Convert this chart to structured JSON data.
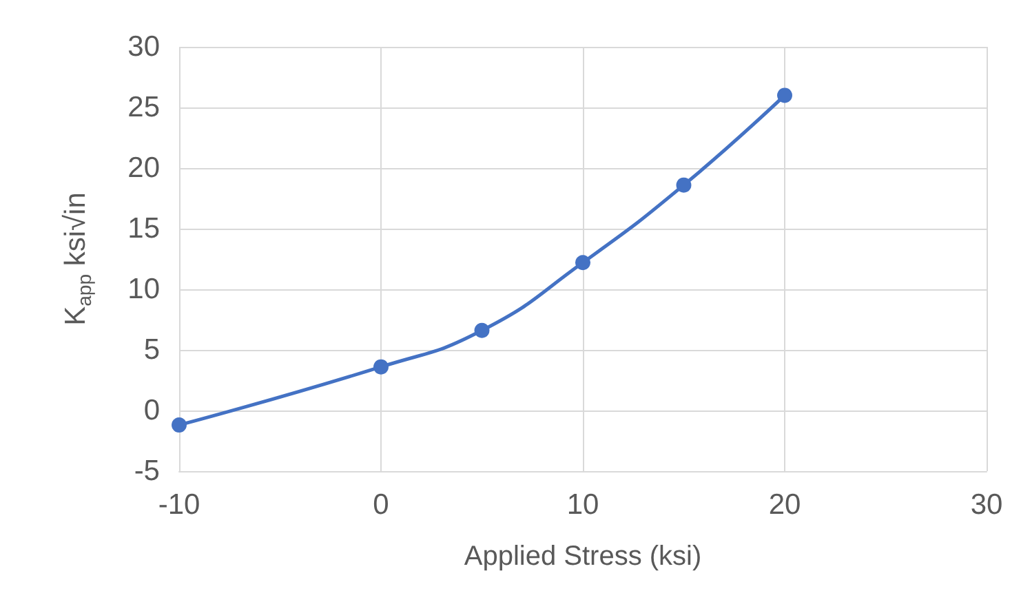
{
  "chart_data": {
    "type": "line",
    "xlabel": "Applied Stress (ksi)",
    "ylabel": "K$_{app}$ ksi√in",
    "x": [
      -10,
      0,
      5,
      10,
      15,
      20
    ],
    "series": [
      {
        "color": "#4472c4",
        "values": [
          -1.2,
          3.6,
          6.6,
          12.2,
          18.6,
          26.0
        ]
      }
    ],
    "xlim": [
      -10,
      30
    ],
    "xticks": [
      -10,
      0,
      10,
      20,
      30
    ],
    "ylim": [
      -5,
      30
    ],
    "yticks": [
      -5,
      0,
      5,
      10,
      15,
      20,
      25,
      30
    ],
    "grid": true,
    "marker": "circle",
    "line_style": "solid"
  }
}
